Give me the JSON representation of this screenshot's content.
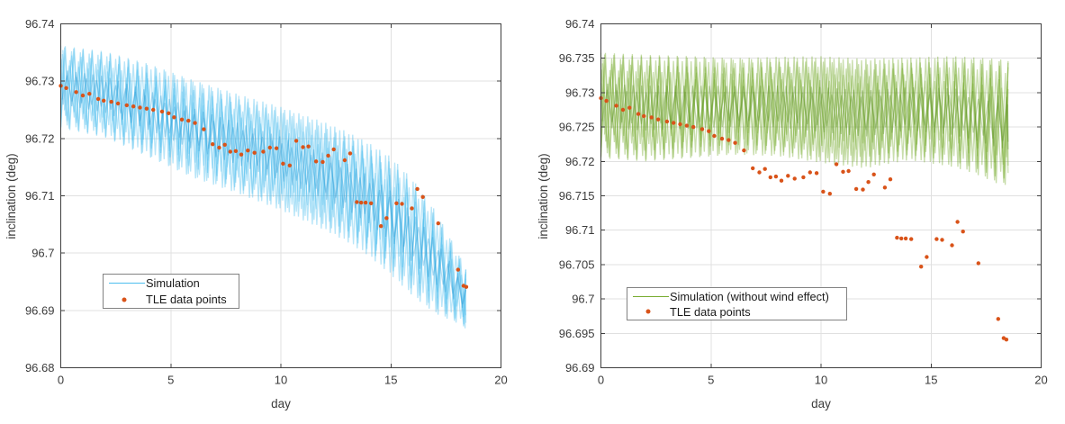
{
  "figure": {
    "background": "#ffffff"
  },
  "colors": {
    "simulation_blue": "#4dbeee",
    "simulation_blue_dark": "#2e9fd8",
    "simulation_green": "#77ac30",
    "simulation_green_dark": "#5f9426",
    "tle_orange": "#d95319",
    "grid": "#e0e0e0",
    "axis": "#3f3f3f",
    "tick_label": "#3b3b3b"
  },
  "chart_data": {
    "type": "multi-panel",
    "tle_points": {
      "day": [
        0,
        0.25,
        0.7,
        1.0,
        1.3,
        1.7,
        1.95,
        2.3,
        2.6,
        3.0,
        3.3,
        3.6,
        3.9,
        4.2,
        4.6,
        4.9,
        5.15,
        5.5,
        5.8,
        6.1,
        6.5,
        6.9,
        7.2,
        7.45,
        7.7,
        7.95,
        8.2,
        8.5,
        8.8,
        9.2,
        9.5,
        9.8,
        10.1,
        10.4,
        10.7,
        11.0,
        11.25,
        11.6,
        11.9,
        12.15,
        12.4,
        12.9,
        13.15,
        13.45,
        13.65,
        13.85,
        14.1,
        14.55,
        14.8,
        15.25,
        15.5,
        15.95,
        16.2,
        16.45,
        17.15,
        18.05,
        18.3,
        18.42
      ],
      "inclination": [
        96.7292,
        96.7288,
        96.7281,
        96.7275,
        96.7278,
        96.7269,
        96.7266,
        96.7264,
        96.7261,
        96.7258,
        96.7256,
        96.7254,
        96.7252,
        96.725,
        96.7247,
        96.7244,
        96.7237,
        96.7233,
        96.7231,
        96.7227,
        96.7216,
        96.719,
        96.7184,
        96.7189,
        96.7177,
        96.7178,
        96.7172,
        96.7179,
        96.7175,
        96.7177,
        96.7184,
        96.7183,
        96.7156,
        96.7153,
        96.7196,
        96.7185,
        96.7186,
        96.716,
        96.7159,
        96.717,
        96.7181,
        96.7162,
        96.7174,
        96.7089,
        96.7088,
        96.7088,
        96.7087,
        96.7047,
        96.7061,
        96.7087,
        96.7086,
        96.7078,
        96.7112,
        96.7098,
        96.7052,
        96.6971,
        96.6943,
        96.6941
      ]
    },
    "charts": [
      {
        "type": "line+scatter",
        "xlabel": "day",
        "ylabel": "inclination (deg)",
        "xlim": [
          0,
          20
        ],
        "ylim": [
          96.68,
          96.74
        ],
        "xticks": [
          0,
          5,
          10,
          15,
          20
        ],
        "xtick_labels": [
          "0",
          "5",
          "10",
          "15",
          "20"
        ],
        "yticks": [
          96.68,
          96.69,
          96.7,
          96.71,
          96.72,
          96.73,
          96.74
        ],
        "ytick_labels": [
          "96.68",
          "96.69",
          "96.7",
          "96.71",
          "96.72",
          "96.73",
          "96.74"
        ],
        "grid": true,
        "legend_position": "inside lower-left",
        "series": [
          {
            "name": "Simulation",
            "type": "oscillating_band",
            "color_key": "simulation_blue",
            "dark_color_key": "simulation_blue_dark",
            "oscillations_per_day": 2.45,
            "envelope": {
              "day": [
                0,
                2,
                4,
                6,
                8,
                10,
                12,
                13,
                14,
                15,
                16,
                17,
                18,
                18.4
              ],
              "upper": [
                96.7362,
                96.7352,
                96.733,
                96.7302,
                96.7278,
                96.7255,
                96.7228,
                96.7212,
                96.7192,
                96.7168,
                96.7128,
                96.7075,
                96.7005,
                96.6972
              ],
              "lower": [
                96.7218,
                96.7202,
                96.7168,
                96.7132,
                96.7105,
                96.7075,
                96.704,
                96.702,
                96.6995,
                96.6962,
                96.6925,
                96.6895,
                96.6878,
                96.6868
              ]
            }
          },
          {
            "name": "TLE data points",
            "type": "scatter",
            "color_key": "tle_orange",
            "points_ref": "tle_points"
          }
        ]
      },
      {
        "type": "line+scatter",
        "xlabel": "day",
        "ylabel": "inclination (deg)",
        "xlim": [
          0,
          20
        ],
        "ylim": [
          96.69,
          96.74
        ],
        "xticks": [
          0,
          5,
          10,
          15,
          20
        ],
        "xtick_labels": [
          "0",
          "5",
          "10",
          "15",
          "20"
        ],
        "yticks": [
          96.69,
          96.695,
          96.7,
          96.705,
          96.71,
          96.715,
          96.72,
          96.725,
          96.73,
          96.735,
          96.74
        ],
        "ytick_labels": [
          "96.69",
          "96.695",
          "96.7",
          "96.705",
          "96.71",
          "96.715",
          "96.72",
          "96.725",
          "96.73",
          "96.735",
          "96.74"
        ],
        "grid": true,
        "legend_position": "inside lower-left",
        "series": [
          {
            "name": "Simulation (without wind effect)",
            "type": "oscillating_band",
            "color_key": "simulation_green",
            "dark_color_key": "simulation_green_dark",
            "oscillations_per_day": 2.45,
            "envelope": {
              "day": [
                0,
                2,
                4,
                6,
                8,
                10,
                12,
                14,
                16,
                17,
                18,
                18.5
              ],
              "upper": [
                96.7358,
                96.7355,
                96.7353,
                96.735,
                96.7352,
                96.7353,
                96.7349,
                96.7351,
                96.7353,
                96.7351,
                96.7349,
                96.7346
              ],
              "lower": [
                96.7205,
                96.72,
                96.7205,
                96.721,
                96.7208,
                96.7198,
                96.719,
                96.7202,
                96.7192,
                96.7182,
                96.7168,
                96.7165
              ]
            }
          },
          {
            "name": "TLE data points",
            "type": "scatter",
            "color_key": "tle_orange",
            "points_ref": "tle_points"
          }
        ]
      }
    ]
  }
}
